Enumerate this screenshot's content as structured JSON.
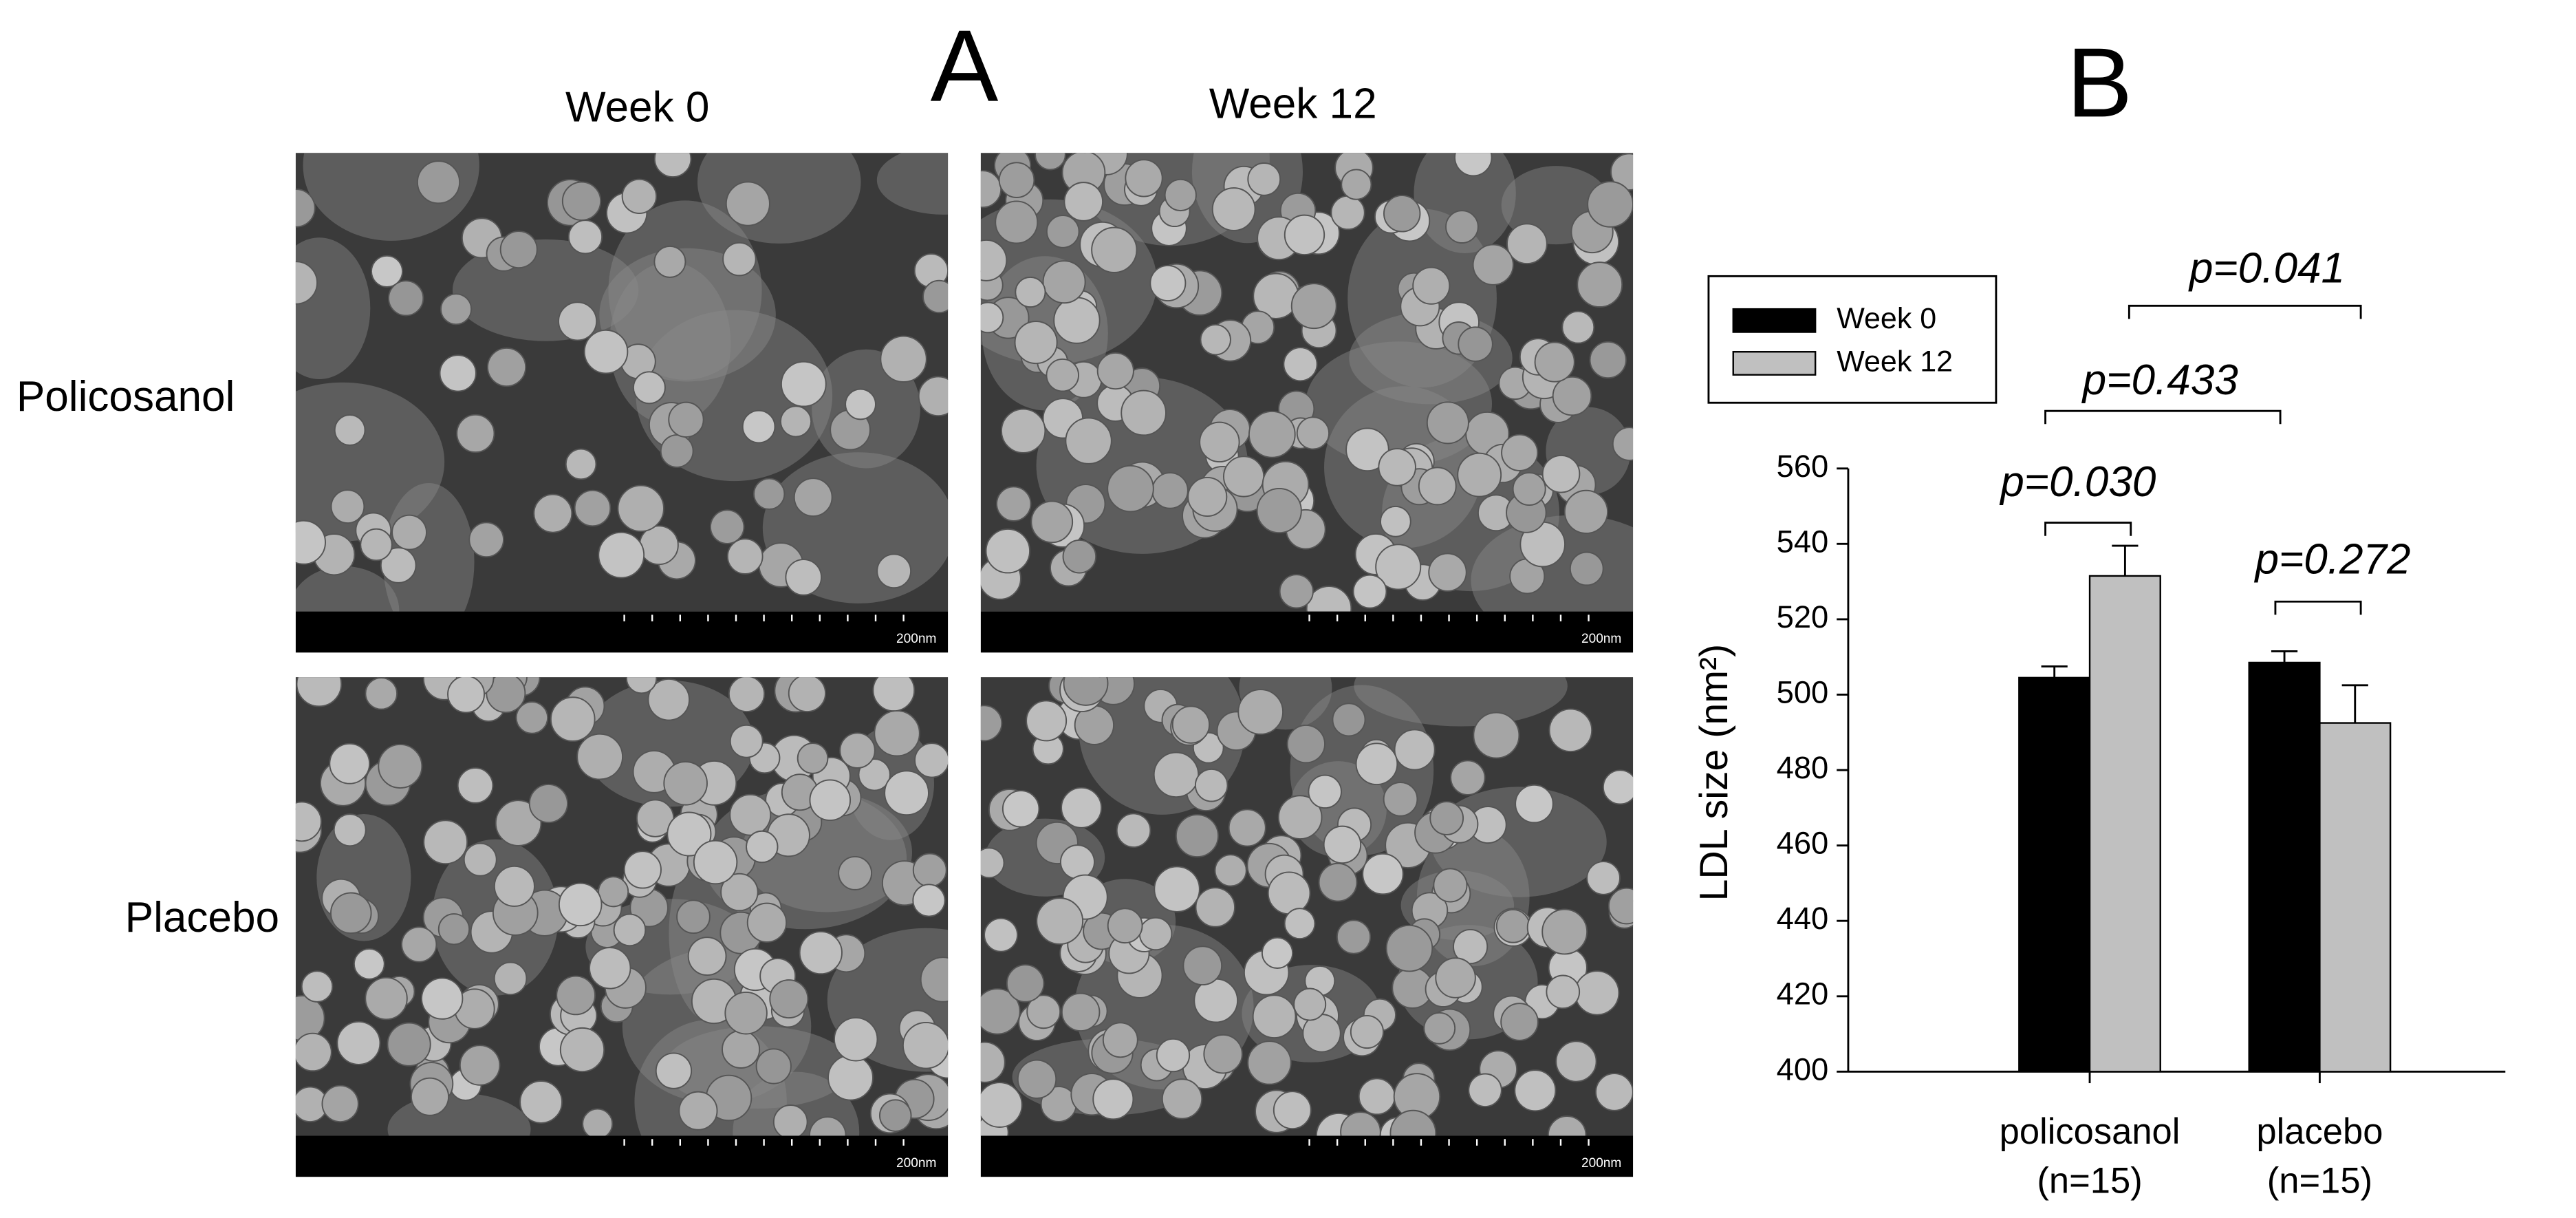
{
  "panel_a": {
    "label": "A",
    "columns": [
      "Week 0",
      "Week 12"
    ],
    "rows": [
      "Policosanol",
      "Placebo"
    ],
    "scale_bar": "200nm"
  },
  "chart_data": {
    "type": "bar",
    "panel_label": "B",
    "y_label": "LDL size (nm²)",
    "categories": [
      "policosanol",
      "placebo"
    ],
    "category_sublabels": [
      "(n=15)",
      "(n=15)"
    ],
    "series": [
      {
        "name": "Week 0",
        "color": "#000000",
        "values": [
          504.5,
          508.5
        ],
        "errors": [
          3,
          3
        ]
      },
      {
        "name": "Week 12",
        "color": "#c0c0c0",
        "values": [
          531.5,
          492.5
        ],
        "errors": [
          8,
          10
        ]
      }
    ],
    "ylim": [
      400,
      560
    ],
    "yticks": [
      400,
      420,
      440,
      460,
      480,
      500,
      520,
      540,
      560
    ],
    "legend": "upper left",
    "annotations": [
      "p=0.030",
      "p=0.272",
      "p=0.433",
      "p=0.041"
    ]
  }
}
